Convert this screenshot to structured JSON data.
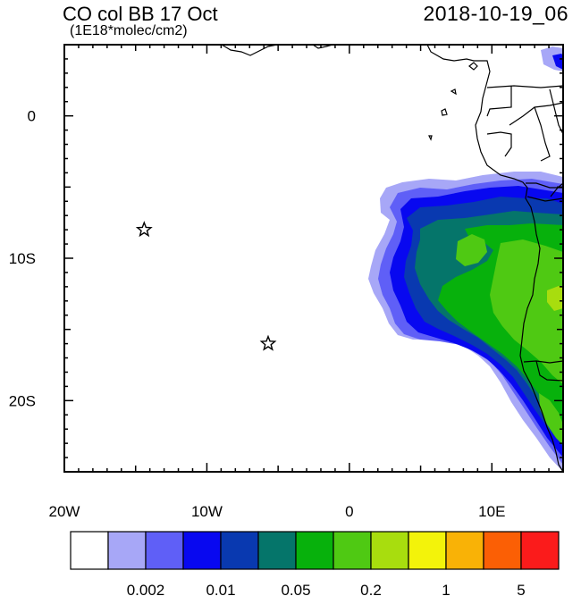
{
  "title": "CO col BB 17 Oct",
  "units": "(1E18*molec/cm2)",
  "valid_time": "2018-10-19_06",
  "map": {
    "lon_range": [
      -20,
      15
    ],
    "lat_range": [
      -25,
      5
    ],
    "lon_tick_labels": [
      {
        "lon": -20,
        "label": "20W"
      },
      {
        "lon": -10,
        "label": "10W"
      },
      {
        "lon": 0,
        "label": "0"
      },
      {
        "lon": 10,
        "label": "10E"
      }
    ],
    "lat_tick_labels": [
      {
        "lat": 0,
        "label": "0"
      },
      {
        "lat": -10,
        "label": "10S"
      },
      {
        "lat": -20,
        "label": "20S"
      }
    ],
    "markers": [
      {
        "name": "star-marker",
        "lon": -14.4,
        "lat": -8.0
      },
      {
        "name": "star-marker",
        "lon": -5.7,
        "lat": -16.0
      }
    ]
  },
  "colorbar": {
    "colors": [
      "#ffffff",
      "#a7a7f7",
      "#5f5ff7",
      "#0808f0",
      "#0939b0",
      "#05756a",
      "#07b10c",
      "#4fc913",
      "#a8dd0e",
      "#f3f30a",
      "#f9b206",
      "#fb5f05",
      "#fb1b1b"
    ],
    "labels": [
      {
        "after_box": 2,
        "text": "0.002"
      },
      {
        "after_box": 4,
        "text": "0.01"
      },
      {
        "after_box": 6,
        "text": "0.05"
      },
      {
        "after_box": 8,
        "text": "0.2"
      },
      {
        "after_box": 10,
        "text": "1"
      },
      {
        "after_box": 12,
        "text": "5"
      }
    ]
  }
}
